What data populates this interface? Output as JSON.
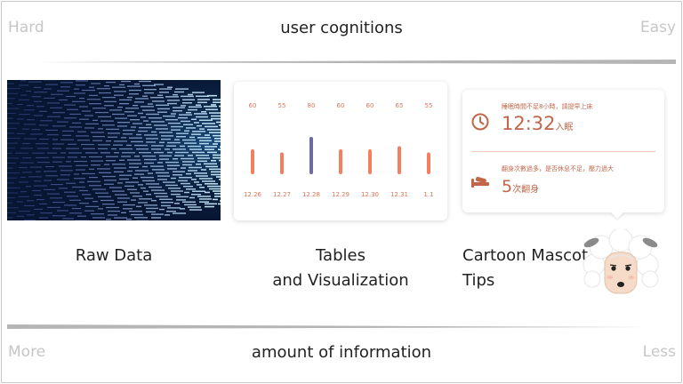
{
  "top": {
    "left": "Hard",
    "title": "user cognitions",
    "right": "Easy"
  },
  "bottom": {
    "left": "More",
    "title": "amount of information",
    "right": "Less"
  },
  "panels": {
    "raw_caption": "Raw Data",
    "chart_caption_1": "Tables",
    "chart_caption_2": "and Visualization",
    "mascot_caption_1": "Cartoon Mascot",
    "mascot_caption_2": "Tips"
  },
  "chart_data": {
    "type": "bar",
    "categories": [
      "12.26",
      "12.27",
      "12.28",
      "12.29",
      "12.30",
      "12.31",
      "1.1"
    ],
    "values": [
      60,
      55,
      80,
      60,
      60,
      65,
      55
    ],
    "highlight_index": 2,
    "ylim": [
      0,
      100
    ],
    "colors": {
      "bar": "#f47f5e",
      "highlight": "#6e6aa2",
      "label": "#d8765a"
    }
  },
  "tips": {
    "tip1_text": "睡眠時間不足8小時，請提早上床",
    "tip1_value": "12:32",
    "tip1_unit": "入眠",
    "tip2_text": "翻身次數過多，是否休息不足，壓力過大",
    "tip2_value": "5",
    "tip2_unit": "次翻身",
    "clock_icon": "clock-icon",
    "bed_icon": "turning-in-bed-icon",
    "accent": "#c0674a"
  },
  "colors": {
    "rule": "#b5b5b5",
    "corner": "#c6c6c6"
  }
}
